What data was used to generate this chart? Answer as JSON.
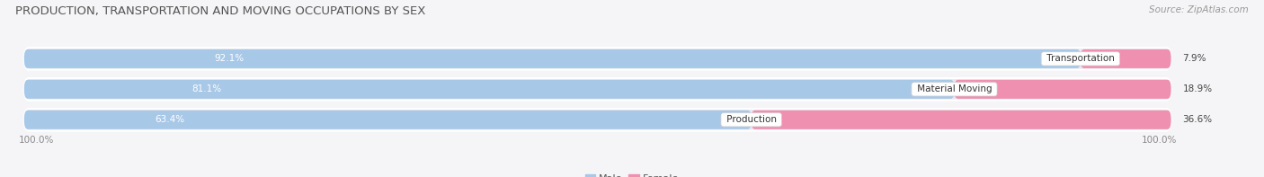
{
  "title": "PRODUCTION, TRANSPORTATION AND MOVING OCCUPATIONS BY SEX",
  "source": "Source: ZipAtlas.com",
  "categories": [
    "Transportation",
    "Material Moving",
    "Production"
  ],
  "male_values": [
    92.1,
    81.1,
    63.4
  ],
  "female_values": [
    7.9,
    18.9,
    36.6
  ],
  "male_color": "#a8c8e8",
  "female_color": "#f090b0",
  "bg_row_color": "#e8e8ec",
  "title_fontsize": 9.5,
  "source_fontsize": 7.5,
  "bar_label_fontsize": 7.5,
  "cat_label_fontsize": 7.5,
  "legend_fontsize": 8,
  "axis_label_fontsize": 7.5,
  "left_axis_label": "100.0%",
  "right_axis_label": "100.0%",
  "background_color": "#f5f5f7"
}
